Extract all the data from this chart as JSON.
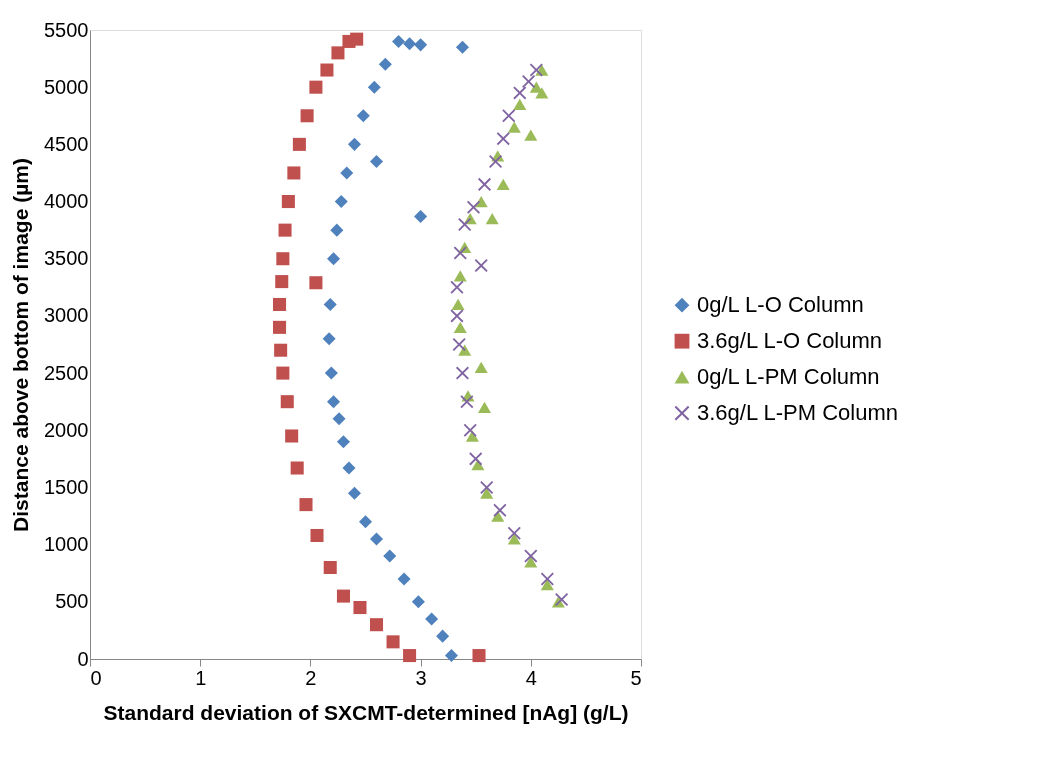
{
  "chart_data": {
    "type": "scatter",
    "xlabel": "Standard deviation of SXCMT-determined [nAg] (g/L)",
    "ylabel": "Distance above bottom of image (µm)",
    "xlim": [
      0,
      5
    ],
    "xticks": [
      0,
      1,
      2,
      3,
      4,
      5
    ],
    "ylim": [
      0,
      5500
    ],
    "yticks": [
      0,
      500,
      1000,
      1500,
      2000,
      2500,
      3000,
      3500,
      4000,
      4500,
      5000,
      5500
    ],
    "grid": false,
    "legend": "right",
    "series": [
      {
        "name": "0g/L L-O Column",
        "color": "#4f81bd",
        "marker": "diamond",
        "x": [
          3.28,
          3.2,
          3.1,
          2.98,
          2.85,
          2.72,
          2.6,
          2.5,
          2.4,
          2.35,
          2.3,
          2.26,
          2.21,
          2.19,
          2.17,
          2.18,
          2.21,
          2.24,
          2.28,
          2.33,
          2.4,
          2.48,
          2.58,
          2.68,
          2.8,
          2.9,
          3.0,
          2.6,
          3.0,
          3.38
        ],
        "values": [
          30,
          200,
          350,
          500,
          700,
          900,
          1050,
          1200,
          1450,
          1670,
          1900,
          2100,
          2250,
          2500,
          2800,
          3100,
          3500,
          3750,
          4000,
          4250,
          4500,
          4750,
          5000,
          5200,
          5400,
          5380,
          3870,
          4350,
          5370,
          5350
        ]
      },
      {
        "name": "3.6g/L L-O Column",
        "color": "#c0504d",
        "marker": "square",
        "x": [
          2.9,
          2.75,
          2.6,
          2.45,
          2.3,
          2.18,
          2.06,
          1.96,
          1.88,
          1.83,
          1.79,
          1.75,
          1.73,
          1.72,
          1.72,
          1.74,
          1.75,
          1.77,
          1.8,
          1.85,
          1.9,
          1.97,
          2.05,
          2.15,
          2.25,
          2.35,
          2.42,
          2.05,
          3.53
        ],
        "values": [
          30,
          150,
          300,
          450,
          550,
          800,
          1080,
          1350,
          1670,
          1950,
          2250,
          2500,
          2700,
          2900,
          3100,
          3300,
          3500,
          3750,
          4000,
          4250,
          4500,
          4750,
          5000,
          5150,
          5300,
          5400,
          5420,
          3290,
          30
        ]
      },
      {
        "name": "0g/L L-PM Column",
        "color": "#9bbb59",
        "marker": "triangle",
        "x": [
          4.25,
          4.15,
          4.0,
          3.85,
          3.7,
          3.6,
          3.52,
          3.47,
          3.58,
          3.43,
          3.55,
          3.4,
          3.36,
          3.34,
          3.36,
          3.4,
          3.45,
          3.65,
          3.55,
          3.75,
          3.7,
          4.0,
          3.85,
          3.9,
          4.05,
          4.1,
          4.1
        ],
        "values": [
          500,
          650,
          850,
          1050,
          1250,
          1450,
          1700,
          1950,
          2200,
          2300,
          2550,
          2700,
          2900,
          3100,
          3350,
          3600,
          3850,
          3850,
          4000,
          4150,
          4400,
          4580,
          4650,
          4850,
          5000,
          4950,
          5150
        ]
      },
      {
        "name": "3.6g/L L-PM Column",
        "color": "#8064a2",
        "marker": "cross",
        "x": [
          4.28,
          4.15,
          4.0,
          3.85,
          3.72,
          3.6,
          3.5,
          3.45,
          3.42,
          3.38,
          3.35,
          3.33,
          3.33,
          3.36,
          3.4,
          3.48,
          3.58,
          3.68,
          3.75,
          3.8,
          3.9,
          3.98,
          4.05,
          3.55
        ],
        "values": [
          520,
          700,
          900,
          1100,
          1300,
          1500,
          1750,
          2000,
          2250,
          2500,
          2750,
          3000,
          3250,
          3550,
          3800,
          3950,
          4150,
          4350,
          4550,
          4750,
          4950,
          5050,
          5150,
          3440
        ]
      }
    ]
  }
}
